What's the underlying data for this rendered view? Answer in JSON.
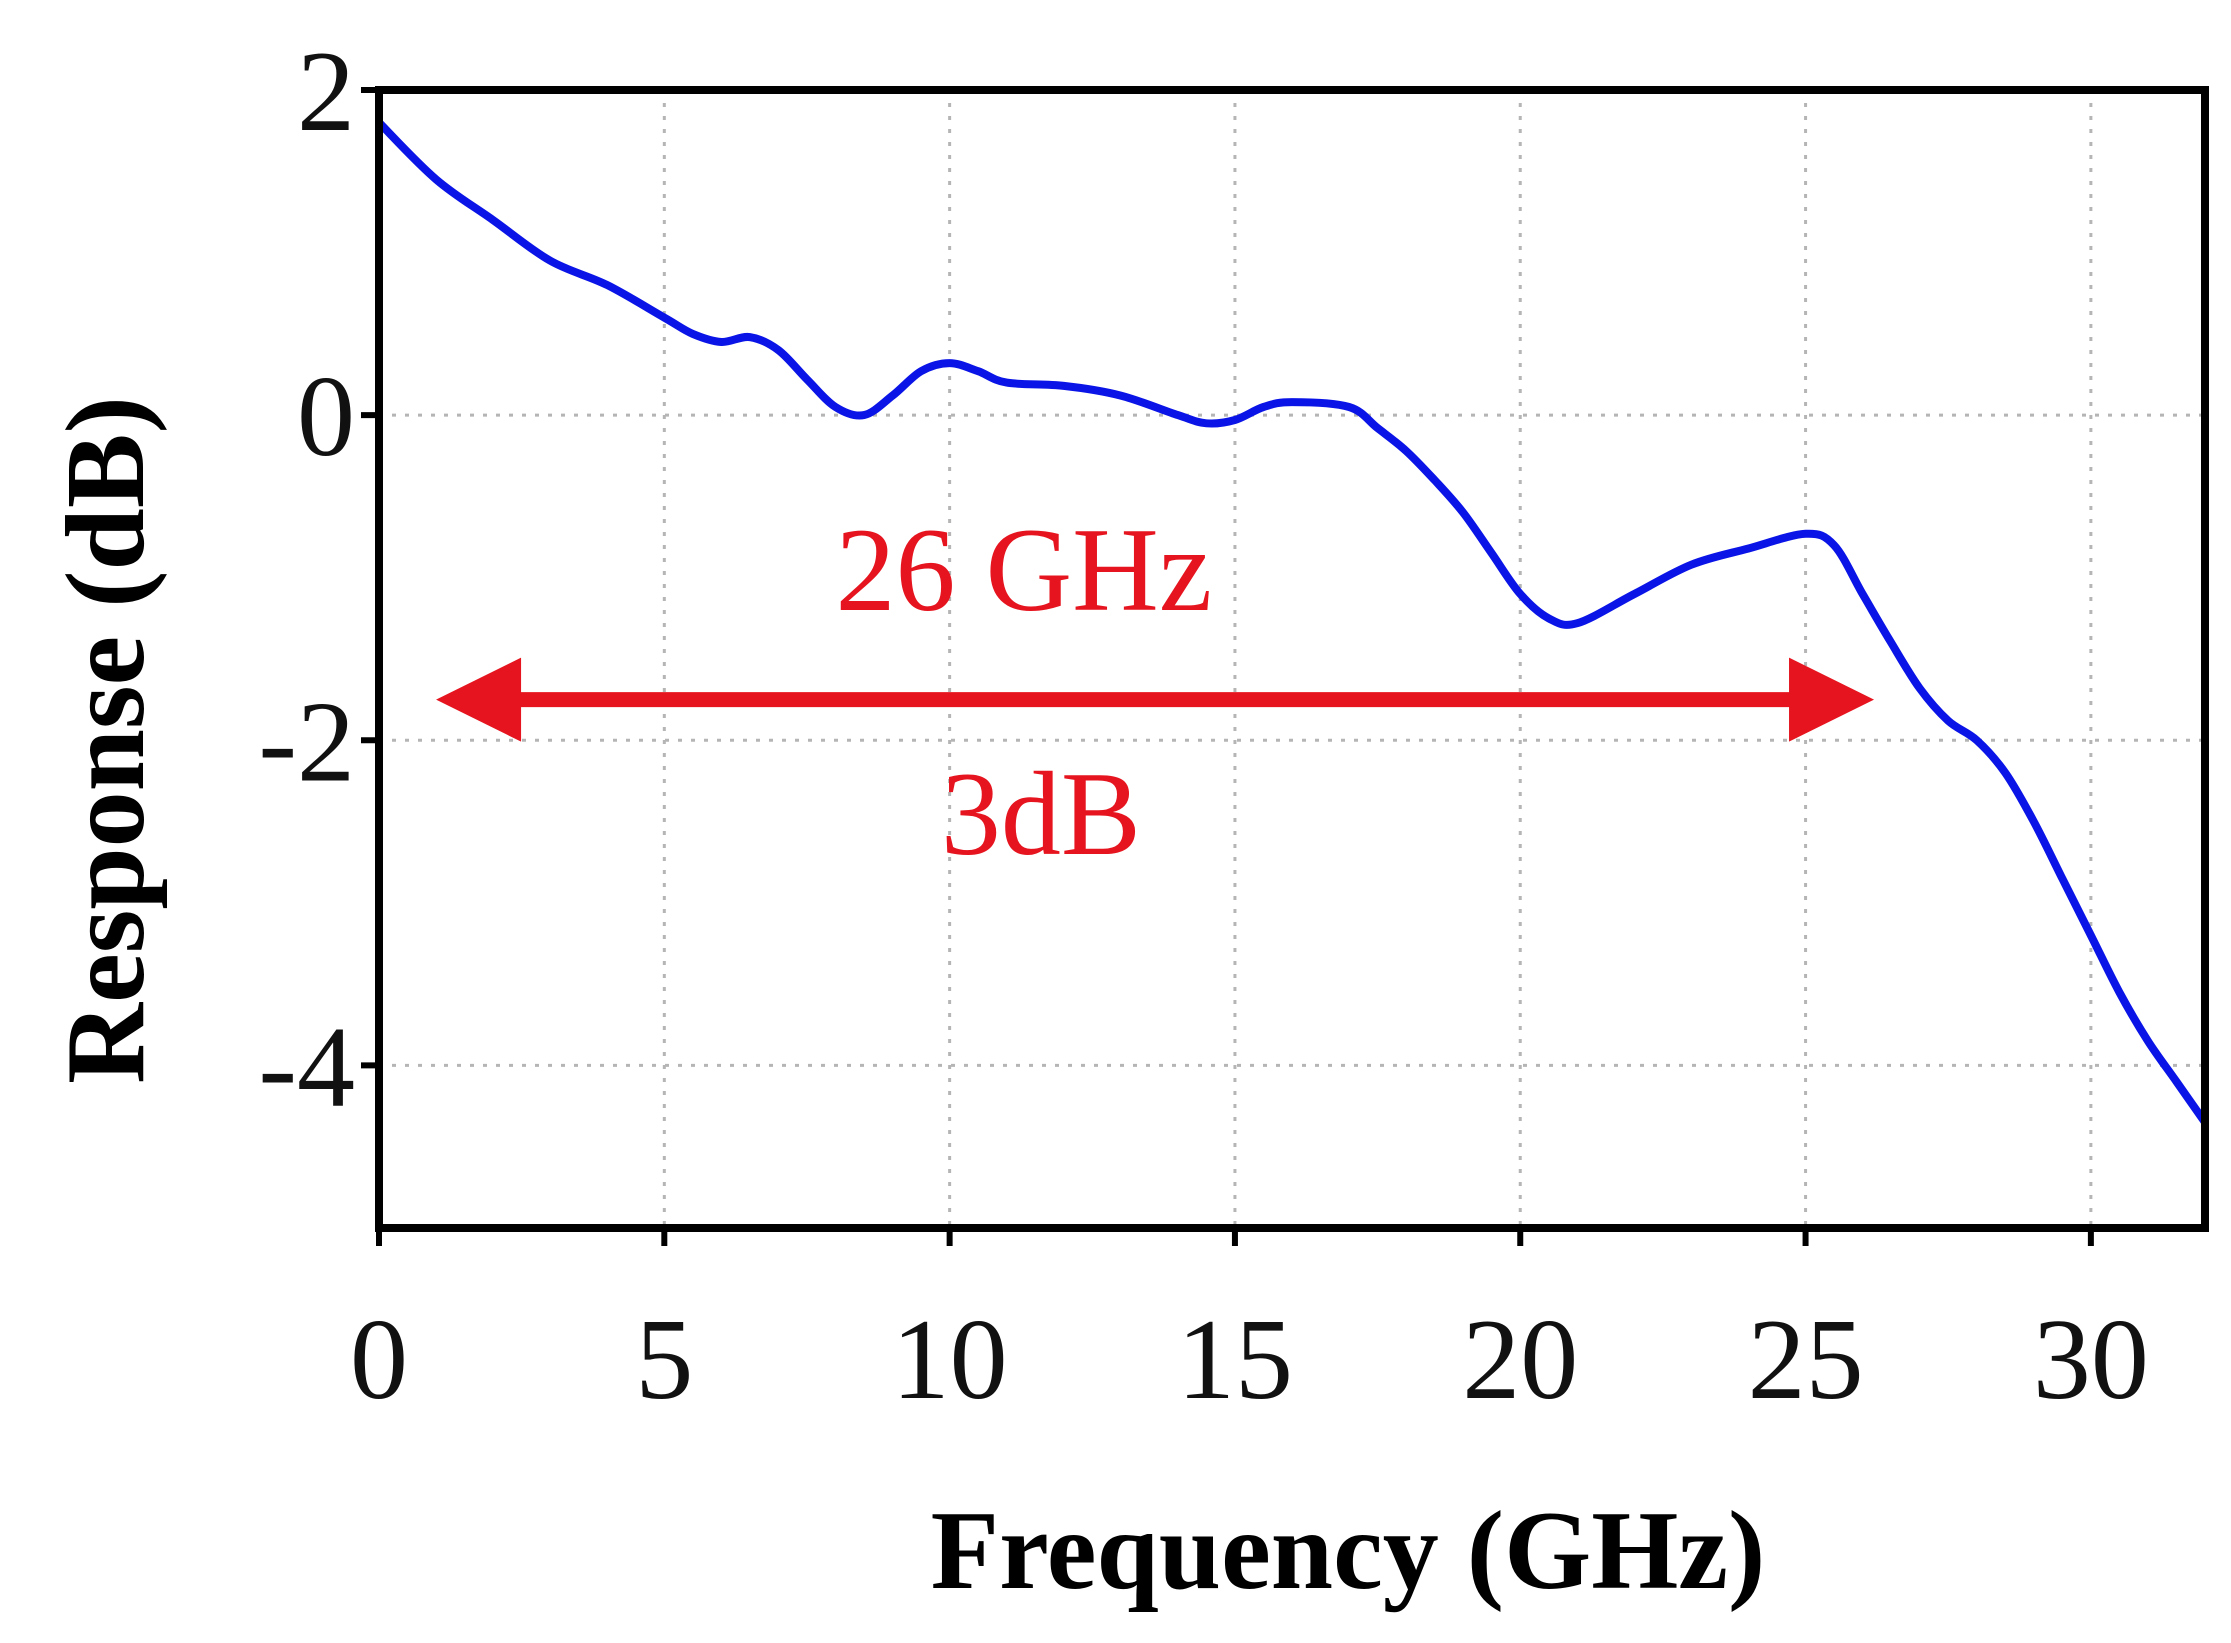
{
  "chart_data": {
    "type": "line",
    "title": "",
    "xlabel": "Frequency (GHz)",
    "ylabel": "Response (dB)",
    "xlim": [
      0,
      32
    ],
    "ylim": [
      -5,
      2
    ],
    "xticks": [
      0,
      5,
      10,
      15,
      20,
      25,
      30
    ],
    "xtick_labels": [
      "0",
      "5",
      "10",
      "15",
      "20",
      "25",
      "30"
    ],
    "yticks": [
      2,
      0,
      -2,
      -4
    ],
    "ytick_labels": [
      "2",
      "0",
      "-2",
      "-4"
    ],
    "grid": true,
    "legend": "none",
    "series": [
      {
        "color": "#0a14e6",
        "x": [
          0,
          1,
          2,
          3,
          4,
          5,
          5.5,
          6,
          6.5,
          7,
          7.5,
          8,
          8.5,
          9,
          9.5,
          10,
          10.5,
          11,
          12,
          13,
          14,
          14.5,
          15,
          15.5,
          16,
          17,
          17.5,
          18,
          18.5,
          19,
          19.5,
          20,
          20.5,
          21,
          22,
          23,
          24,
          25,
          25.5,
          26,
          26.5,
          27,
          27.5,
          28,
          28.5,
          29,
          29.5,
          30,
          30.5,
          31,
          31.5,
          32
        ],
        "y": [
          1.8,
          1.45,
          1.2,
          0.95,
          0.8,
          0.6,
          0.5,
          0.45,
          0.48,
          0.4,
          0.22,
          0.05,
          0.0,
          0.12,
          0.27,
          0.32,
          0.27,
          0.2,
          0.18,
          0.12,
          0.0,
          -0.05,
          -0.03,
          0.05,
          0.08,
          0.05,
          -0.08,
          -0.22,
          -0.4,
          -0.6,
          -0.85,
          -1.1,
          -1.25,
          -1.28,
          -1.1,
          -0.92,
          -0.82,
          -0.73,
          -0.8,
          -1.1,
          -1.4,
          -1.68,
          -1.88,
          -2.0,
          -2.2,
          -2.5,
          -2.85,
          -3.2,
          -3.55,
          -3.85,
          -4.1,
          -4.35
        ]
      }
    ],
    "annotations": [
      {
        "text": "26 GHz",
        "color": "#e6141e"
      },
      {
        "text": "3dB",
        "color": "#e6141e"
      }
    ],
    "bandwidth_arrow": {
      "x_start": 1,
      "x_end": 26.2,
      "y": -1.75,
      "color": "#e6141e"
    }
  }
}
